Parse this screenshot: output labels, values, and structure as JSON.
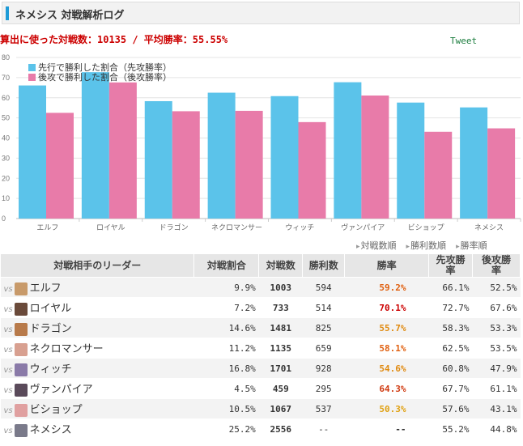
{
  "header": {
    "title": "ネメシス 対戦解析ログ"
  },
  "summary": "算出に使った対戦数：10135 / 平均勝率：55.55%",
  "tweet_label": "Tweet",
  "chart_data": {
    "type": "bar",
    "categories": [
      "エルフ",
      "ロイヤル",
      "ドラゴン",
      "ネクロマンサー",
      "ウィッチ",
      "ヴァンパイア",
      "ビショップ",
      "ネメシス"
    ],
    "series": [
      {
        "name": "先行で勝利した割合（先攻勝率）",
        "color": "#5bc3ea",
        "values": [
          66.1,
          72.7,
          58.3,
          62.5,
          60.8,
          67.7,
          57.6,
          55.2
        ]
      },
      {
        "name": "後攻で勝利した割合（後攻勝率）",
        "color": "#e87ba9",
        "values": [
          52.5,
          67.6,
          53.3,
          53.5,
          47.9,
          61.1,
          43.1,
          44.8
        ]
      }
    ],
    "yticks": [
      0,
      10,
      20,
      30,
      40,
      50,
      60,
      70,
      80
    ],
    "ylim": [
      0,
      80
    ],
    "legend": "top-left",
    "grid": true
  },
  "sort_links": [
    "対戦数順",
    "勝利数順",
    "勝率順"
  ],
  "table": {
    "headers": [
      "対戦相手のリーダー",
      "対戦割合",
      "対戦数",
      "勝利数",
      "勝率",
      "先攻勝率",
      "後攻勝率"
    ],
    "vs_label": "vs",
    "rows": [
      {
        "leader": "エルフ",
        "share": "9.9%",
        "games": "1003",
        "wins": "594",
        "rate": "59.2%",
        "rate_color": "#e06010",
        "first": "66.1%",
        "second": "52.5%",
        "avatar": "#c89a6a"
      },
      {
        "leader": "ロイヤル",
        "share": "7.2%",
        "games": "733",
        "wins": "514",
        "rate": "70.1%",
        "rate_color": "#cc0000",
        "first": "72.7%",
        "second": "67.6%",
        "avatar": "#6a4a3a"
      },
      {
        "leader": "ドラゴン",
        "share": "14.6%",
        "games": "1481",
        "wins": "825",
        "rate": "55.7%",
        "rate_color": "#e08a10",
        "first": "58.3%",
        "second": "53.3%",
        "avatar": "#b87a4a"
      },
      {
        "leader": "ネクロマンサー",
        "share": "11.2%",
        "games": "1135",
        "wins": "659",
        "rate": "58.1%",
        "rate_color": "#e06010",
        "first": "62.5%",
        "second": "53.5%",
        "avatar": "#d8a090"
      },
      {
        "leader": "ウィッチ",
        "share": "16.8%",
        "games": "1701",
        "wins": "928",
        "rate": "54.6%",
        "rate_color": "#e08a10",
        "first": "60.8%",
        "second": "47.9%",
        "avatar": "#8a7aa8"
      },
      {
        "leader": "ヴァンパイア",
        "share": "4.5%",
        "games": "459",
        "wins": "295",
        "rate": "64.3%",
        "rate_color": "#d03a10",
        "first": "67.7%",
        "second": "61.1%",
        "avatar": "#5a4a5a"
      },
      {
        "leader": "ビショップ",
        "share": "10.5%",
        "games": "1067",
        "wins": "537",
        "rate": "50.3%",
        "rate_color": "#e0a010",
        "first": "57.6%",
        "second": "43.1%",
        "avatar": "#e0a0a0"
      },
      {
        "leader": "ネメシス",
        "share": "25.2%",
        "games": "2556",
        "wins": "--",
        "rate": "--",
        "rate_color": "#333333",
        "first": "55.2%",
        "second": "44.8%",
        "avatar": "#7a7a8a"
      }
    ]
  }
}
